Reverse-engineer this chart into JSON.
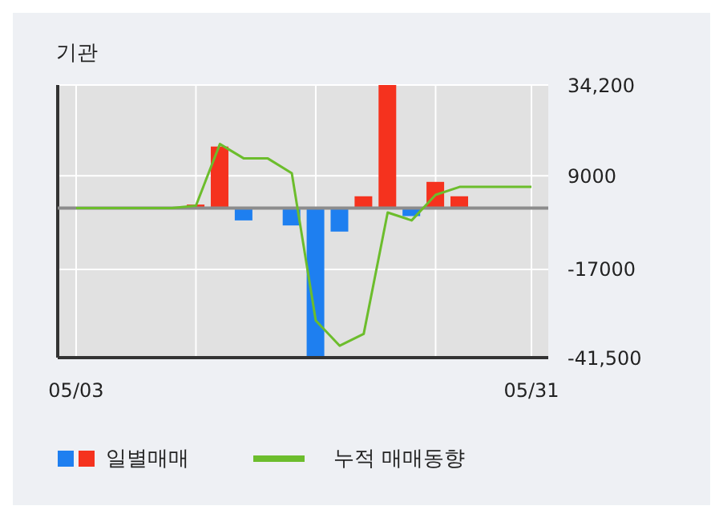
{
  "chart_data": {
    "type": "bar",
    "title": "기관",
    "categories": [
      "05/03",
      null,
      null,
      null,
      null,
      null,
      null,
      null,
      null,
      null,
      null,
      null,
      null,
      null,
      null,
      null,
      null,
      null,
      null,
      "05/31"
    ],
    "series": [
      {
        "name": "일별매매",
        "colors": [
          null,
          null,
          null,
          null,
          null,
          "#f5321e",
          "#f5321e",
          "#1e7ff0",
          null,
          "#1e7ff0",
          "#1e7ff0",
          "#1e7ff0",
          "#f5321e",
          "#f5321e",
          "#1e7ff0",
          "#f5321e",
          "#f5321e",
          null,
          null,
          null
        ],
        "values": [
          null,
          null,
          null,
          null,
          null,
          1000,
          17100,
          -3400,
          null,
          -4800,
          -41500,
          -6500,
          3300,
          34200,
          -2200,
          7300,
          3300,
          null,
          null,
          null
        ]
      },
      {
        "name": "누적 매매동향",
        "type": "line",
        "color": "#6cbd2c",
        "values": [
          0,
          0,
          0,
          0,
          0,
          700,
          17800,
          13800,
          13800,
          9700,
          -31200,
          -38200,
          -34900,
          -1200,
          -3400,
          3700,
          5900,
          5900,
          5900,
          5900
        ]
      }
    ],
    "ylim": [
      -41500,
      34200
    ],
    "yticks": [
      {
        "value": 34200,
        "label": "34,200"
      },
      9000,
      -17000,
      {
        "value": -41500,
        "label": "-41,500"
      }
    ],
    "ref_lines": [
      {
        "axis": "y",
        "value": 0,
        "color": "#8c8c8c"
      }
    ],
    "grid": true,
    "legend": "bottom",
    "marker": "none",
    "line_style": "solid"
  }
}
